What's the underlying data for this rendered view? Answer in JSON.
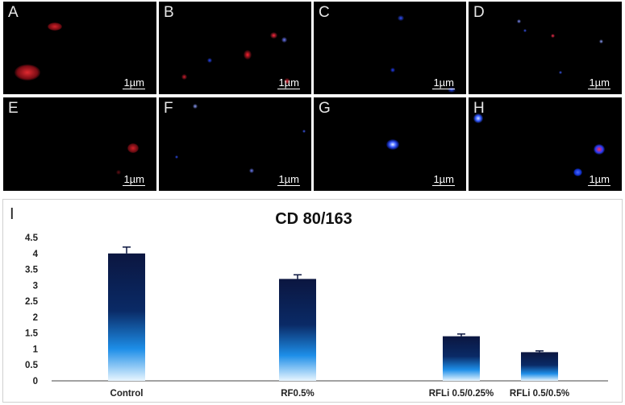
{
  "panels": [
    {
      "letter": "A",
      "scale": "1µm"
    },
    {
      "letter": "B",
      "scale": "1µm"
    },
    {
      "letter": "C",
      "scale": "1µm"
    },
    {
      "letter": "D",
      "scale": "1µm"
    },
    {
      "letter": "E",
      "scale": "1µm"
    },
    {
      "letter": "F",
      "scale": "1µm"
    },
    {
      "letter": "G",
      "scale": "1µm"
    },
    {
      "letter": "H",
      "scale": "1µm"
    }
  ],
  "chart_panel_letter": "I",
  "colors": {
    "bar_top": "#0b1640",
    "bar_bottom": "#e8f6ff",
    "red_stain": "#d6222a",
    "blue_stain": "#1a3cff"
  },
  "chart_data": {
    "type": "bar",
    "title": "CD 80/163",
    "categories": [
      "Control",
      "RF0.5%",
      "RFLi 0.5/0.25%",
      "RFLi 0.5/0.5%"
    ],
    "values": [
      4.0,
      3.2,
      1.4,
      0.9
    ],
    "errors": [
      0.2,
      0.13,
      0.07,
      0.04
    ],
    "ylim": [
      0,
      4.5
    ],
    "yticks": [
      "0",
      "0.5",
      "1",
      "1.5",
      "2",
      "2.5",
      "3",
      "3.5",
      "4",
      "4.5"
    ],
    "xlabel": "",
    "ylabel": "",
    "grid": false,
    "legend": "none"
  }
}
